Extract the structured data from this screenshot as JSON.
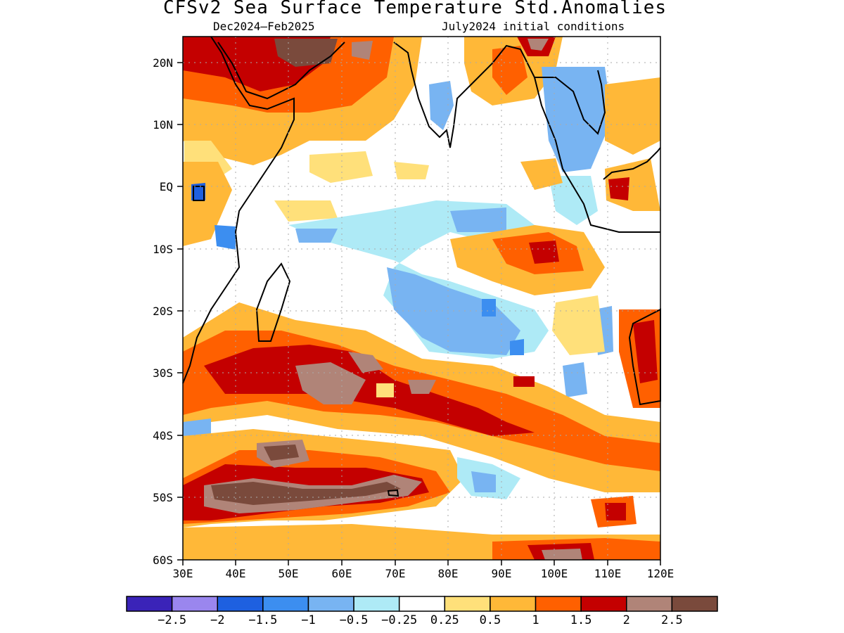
{
  "title": "CFSv2 Sea Surface Temperature Std.Anomalies",
  "subtitle_period": "Dec2024–Feb2025",
  "subtitle_init": "July2024 initial conditions",
  "y_ticks": [
    "20N",
    "10N",
    "EQ",
    "10S",
    "20S",
    "30S",
    "40S",
    "50S",
    "60S"
  ],
  "x_ticks": [
    "30E",
    "40E",
    "50E",
    "60E",
    "70E",
    "80E",
    "90E",
    "100E",
    "110E",
    "120E"
  ],
  "colorbar": {
    "colors": [
      "#3a23b8",
      "#9a86ee",
      "#1e60e0",
      "#3c8ef0",
      "#78b4f2",
      "#aeeaf6",
      "#ffffff",
      "#ffe07a",
      "#ffb838",
      "#ff6000",
      "#c40000",
      "#b08478",
      "#7a4a3c"
    ],
    "labels": [
      "−2.5",
      "−2",
      "−1.5",
      "−1",
      "−0.5",
      "−0.25",
      "0.25",
      "0.5",
      "1",
      "1.5",
      "2",
      "2.5"
    ]
  }
}
